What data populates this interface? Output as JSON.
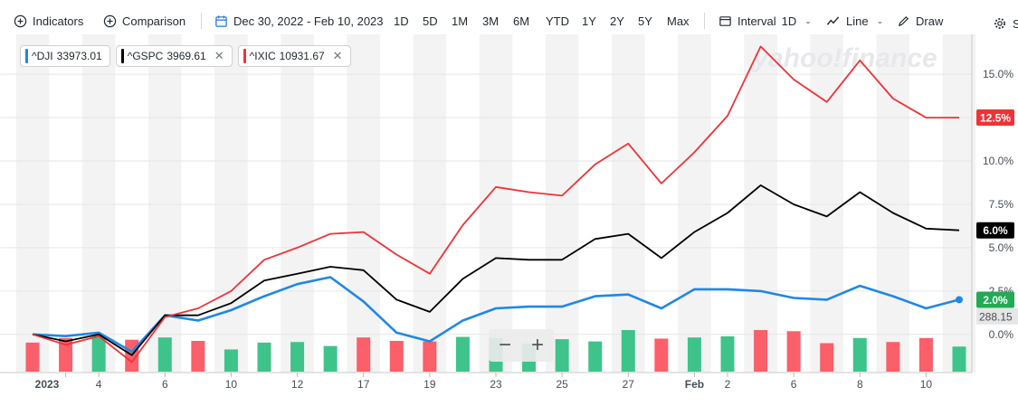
{
  "toolbar": {
    "indicators": "Indicators",
    "comparison": "Comparison",
    "date_range": "Dec 30, 2022 - Feb 10, 2023",
    "ranges": [
      "1D",
      "5D",
      "1M",
      "3M",
      "6M",
      "YTD",
      "1Y",
      "2Y",
      "5Y",
      "Max"
    ],
    "interval_label": "Interval",
    "interval_value": "1D",
    "line_label": "Line",
    "draw_label": "Draw",
    "settings_label": "Se"
  },
  "legend": [
    {
      "symbol": "^DJI",
      "value": "33973.01",
      "color": "#1f88e5",
      "closable": false
    },
    {
      "symbol": "^GSPC",
      "value": "3969.61",
      "color": "#000000",
      "closable": true
    },
    {
      "symbol": "^IXIC",
      "value": "10931.67",
      "color": "#ee3338",
      "closable": true
    }
  ],
  "watermark": "yahoo!finance",
  "zoom": {
    "minus": "−",
    "plus": "+"
  },
  "colors": {
    "up": "#3ec48a",
    "down": "#fb5f6a",
    "dji": "#1f88e5",
    "gspc": "#000000",
    "ixic": "#ee3338"
  },
  "chart_data": {
    "type": "line",
    "x": [
      "Dec 30",
      "Jan 3",
      "Jan 4",
      "Jan 5",
      "Jan 6",
      "Jan 9",
      "Jan 10",
      "Jan 11",
      "Jan 12",
      "Jan 13",
      "Jan 17",
      "Jan 18",
      "Jan 19",
      "Jan 20",
      "Jan 23",
      "Jan 24",
      "Jan 25",
      "Jan 26",
      "Jan 27",
      "Jan 30",
      "Jan 31",
      "Feb 1",
      "Feb 2",
      "Feb 3",
      "Feb 6",
      "Feb 7",
      "Feb 8",
      "Feb 9",
      "Feb 10"
    ],
    "x_tick_labels": [
      {
        "index": 1,
        "label": "2023"
      },
      {
        "index": 2,
        "label": "4"
      },
      {
        "index": 4,
        "label": "6"
      },
      {
        "index": 6,
        "label": "10"
      },
      {
        "index": 8,
        "label": "12"
      },
      {
        "index": 10,
        "label": "17"
      },
      {
        "index": 12,
        "label": "19"
      },
      {
        "index": 14,
        "label": "23"
      },
      {
        "index": 16,
        "label": "25"
      },
      {
        "index": 18,
        "label": "27"
      },
      {
        "index": 20,
        "label": "Feb"
      },
      {
        "index": 21,
        "label": "2"
      },
      {
        "index": 23,
        "label": "6"
      },
      {
        "index": 25,
        "label": "8"
      },
      {
        "index": 27,
        "label": "10"
      }
    ],
    "series": [
      {
        "name": "^DJI",
        "values": [
          0.0,
          -0.1,
          0.1,
          -1.0,
          1.1,
          0.8,
          1.4,
          2.2,
          2.9,
          3.3,
          1.9,
          0.1,
          -0.4,
          0.8,
          1.5,
          1.6,
          1.6,
          2.2,
          2.3,
          1.5,
          2.6,
          2.6,
          2.5,
          2.1,
          2.0,
          2.8,
          2.2,
          1.5,
          2.0
        ]
      },
      {
        "name": "^GSPC",
        "values": [
          0.0,
          -0.4,
          0.0,
          -1.2,
          1.1,
          1.1,
          1.8,
          3.1,
          3.5,
          3.9,
          3.7,
          2.0,
          1.3,
          3.2,
          4.4,
          4.3,
          4.3,
          5.5,
          5.8,
          4.4,
          5.9,
          7.0,
          8.6,
          7.5,
          6.8,
          8.2,
          7.0,
          6.1,
          6.0
        ]
      },
      {
        "name": "^IXIC",
        "values": [
          0.0,
          -0.6,
          -0.1,
          -1.6,
          1.0,
          1.5,
          2.5,
          4.3,
          5.0,
          5.8,
          5.9,
          4.6,
          3.5,
          6.3,
          8.5,
          8.2,
          8.0,
          9.8,
          11.0,
          8.7,
          10.5,
          12.6,
          16.6,
          14.7,
          13.4,
          15.8,
          13.6,
          12.5,
          12.5
        ]
      }
    ],
    "volume_bars": [
      {
        "index": 0,
        "up": false
      },
      {
        "index": 1,
        "up": false
      },
      {
        "index": 2,
        "up": true
      },
      {
        "index": 3,
        "up": false
      },
      {
        "index": 4,
        "up": true
      },
      {
        "index": 5,
        "up": false
      },
      {
        "index": 6,
        "up": true
      },
      {
        "index": 7,
        "up": true
      },
      {
        "index": 8,
        "up": true
      },
      {
        "index": 9,
        "up": true
      },
      {
        "index": 10,
        "up": false
      },
      {
        "index": 11,
        "up": false
      },
      {
        "index": 12,
        "up": false
      },
      {
        "index": 13,
        "up": true
      },
      {
        "index": 14,
        "up": true
      },
      {
        "index": 15,
        "up": true
      },
      {
        "index": 16,
        "up": true
      },
      {
        "index": 17,
        "up": true
      },
      {
        "index": 18,
        "up": true
      },
      {
        "index": 19,
        "up": false
      },
      {
        "index": 20,
        "up": true
      },
      {
        "index": 21,
        "up": true
      },
      {
        "index": 22,
        "up": false
      },
      {
        "index": 23,
        "up": false
      },
      {
        "index": 24,
        "up": false
      },
      {
        "index": 25,
        "up": true
      },
      {
        "index": 26,
        "up": false
      },
      {
        "index": 27,
        "up": false
      },
      {
        "index": 28,
        "up": true
      }
    ],
    "volume_rel": [
      0.51,
      0.59,
      0.64,
      0.56,
      0.6,
      0.54,
      0.39,
      0.51,
      0.52,
      0.45,
      0.6,
      0.54,
      0.53,
      0.61,
      0.59,
      0.49,
      0.57,
      0.53,
      0.73,
      0.58,
      0.6,
      0.62,
      0.73,
      0.71,
      0.5,
      0.59,
      0.52,
      0.59,
      0.44
    ],
    "y_ticks": [
      "0.0%",
      "2.5%",
      "5.0%",
      "7.5%",
      "10.0%",
      "12.5%",
      "15.0%"
    ],
    "ylim": [
      -2.2,
      17.3
    ],
    "y_format": "percent",
    "end_labels": [
      {
        "text": "12.5%",
        "value": 12.5,
        "color": "#ee3338"
      },
      {
        "text": "6.0%",
        "value": 6.0,
        "color": "#000000"
      },
      {
        "text": "2.0%",
        "value": 2.0,
        "color": "#22aa55"
      }
    ],
    "volume_label": "288.15",
    "grid": true,
    "legend_position": "top-left"
  }
}
